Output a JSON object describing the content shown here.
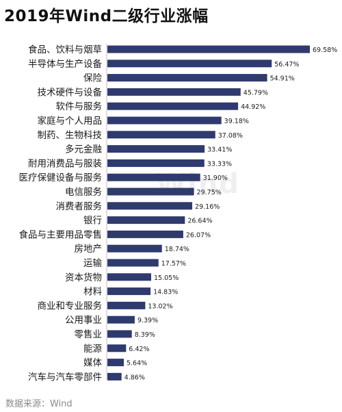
{
  "chart_data": {
    "type": "bar",
    "orientation": "horizontal",
    "title": "2019年Wind二级行业涨幅",
    "categories": [
      "食品、饮料与烟草",
      "半导体与生产设备",
      "保险",
      "技术硬件与设备",
      "软件与服务",
      "家庭与个人用品",
      "制药、生物科技",
      "多元金融",
      "耐用消费品与服装",
      "医疗保健设备与服务",
      "电信服务",
      "消费者服务",
      "银行",
      "食品与主要用品零售",
      "房地产",
      "运输",
      "资本货物",
      "材料",
      "商业和专业服务",
      "公用事业",
      "零售业",
      "能源",
      "媒体",
      "汽车与汽车零部件"
    ],
    "values": [
      69.58,
      56.47,
      54.91,
      45.79,
      44.92,
      39.18,
      37.08,
      33.41,
      33.33,
      31.9,
      29.75,
      29.16,
      26.64,
      26.07,
      18.74,
      17.57,
      15.05,
      14.83,
      13.02,
      9.39,
      8.39,
      6.42,
      5.64,
      4.86
    ],
    "value_labels": [
      "69.58%",
      "56.47%",
      "54.91%",
      "45.79%",
      "44.92%",
      "39.18%",
      "37.08%",
      "33.41%",
      "33.33%",
      "31.90%",
      "29.75%",
      "29.16%",
      "26.64%",
      "26.07%",
      "18.74%",
      "17.57%",
      "15.05%",
      "14.83%",
      "13.02%",
      "9.39%",
      "8.39%",
      "6.42%",
      "5.64%",
      "4.86%"
    ],
    "unit": "%",
    "xlim": [
      0,
      69.58
    ],
    "grid": false,
    "legend": "none",
    "bar_color": "#2f3a6e"
  },
  "source": "数据来源：Wind",
  "watermark": "Wind"
}
